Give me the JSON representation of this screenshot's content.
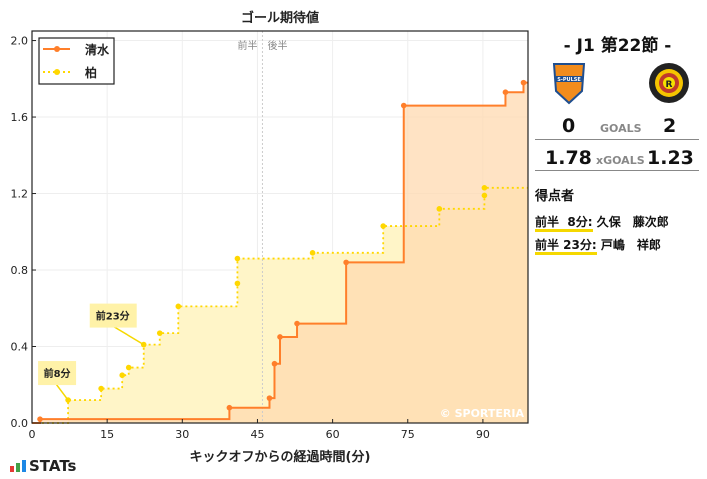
{
  "chart_data": {
    "type": "line",
    "title": "ゴール期待値",
    "xlabel": "キックオフからの経過時間(分)",
    "ylabel": "",
    "xlim": [
      0,
      99
    ],
    "ylim": [
      0,
      2.05
    ],
    "xticks": [
      0,
      15,
      30,
      45,
      60,
      75,
      90
    ],
    "yticks": [
      0.0,
      0.4,
      0.8,
      1.2,
      1.6,
      2.0
    ],
    "ytick_labels": [
      "0.0",
      "0.4",
      "0.8",
      "1.2",
      "1.6",
      "2.0"
    ],
    "grid": true,
    "legend_position": "top-left",
    "half_time_minute": 46,
    "half_labels": [
      "前半",
      "後半"
    ],
    "watermark": "© SPORTERIA",
    "step": true,
    "series": [
      {
        "name": "清水",
        "color": "#ff7f2a",
        "fill": "#ffd9b0",
        "style": "solid",
        "x": [
          1.6,
          39.4,
          47.4,
          48.4,
          49.5,
          52.9,
          62.7,
          74.2,
          94.5,
          98.1
        ],
        "y": [
          0.02,
          0.08,
          0.13,
          0.31,
          0.45,
          0.52,
          0.84,
          1.66,
          1.73,
          1.78
        ]
      },
      {
        "name": "柏",
        "color": "#ffd700",
        "fill": "#fff5c8",
        "style": "dotted",
        "x": [
          7.2,
          13.8,
          18.0,
          19.3,
          22.3,
          25.5,
          29.2,
          41.0,
          41.0,
          56.0,
          70.1,
          81.3,
          90.3,
          90.3
        ],
        "y": [
          0.12,
          0.18,
          0.25,
          0.29,
          0.41,
          0.47,
          0.61,
          0.73,
          0.86,
          0.89,
          1.03,
          1.12,
          1.19,
          1.23
        ]
      }
    ],
    "annotations": [
      {
        "text": "前8分",
        "x": 7.2,
        "y": 0.12
      },
      {
        "text": "前23分",
        "x": 22.3,
        "y": 0.41
      }
    ]
  },
  "match": {
    "round": "-  J1 第22節  -",
    "home": {
      "logo_text": "S-PULSE",
      "goals": "0",
      "xgoals": "1.78"
    },
    "away": {
      "logo_text": "KASHIWA REYSOL",
      "goals": "2",
      "xgoals": "1.23"
    },
    "goals_label": "GOALS",
    "xgoals_label": "xGOALS",
    "scorers_title": "得点者",
    "scorers": [
      {
        "time": "前半  8分:",
        "name": " 久保　藤次郎"
      },
      {
        "time": "前半 23分:",
        "name": " 戸嶋　祥郎"
      }
    ]
  },
  "brand": {
    "name": "STATs"
  }
}
